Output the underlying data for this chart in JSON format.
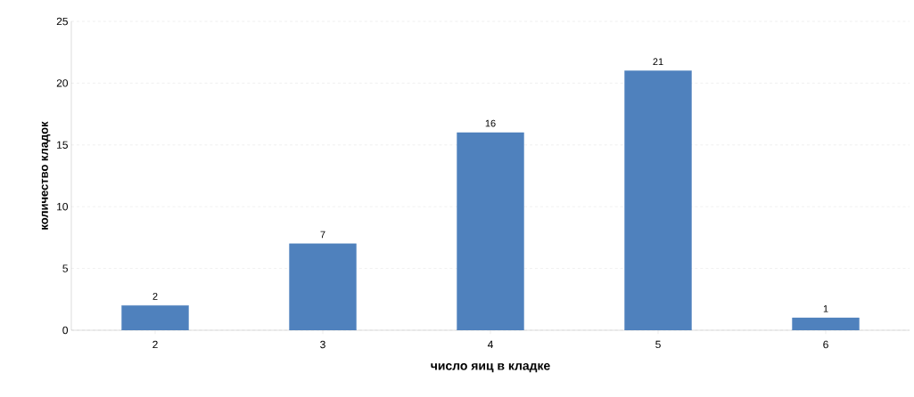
{
  "chart_data": {
    "type": "bar",
    "xlabel": "число яиц в кладке",
    "ylabel": "количество кладок",
    "categories": [
      "2",
      "3",
      "4",
      "5",
      "6"
    ],
    "values": [
      2,
      7,
      16,
      21,
      1
    ],
    "color": "#4f81bd",
    "ylim": [
      0,
      25
    ],
    "yticks": [
      0,
      5,
      10,
      15,
      20,
      25
    ],
    "grid": "y",
    "data_labels": true
  }
}
